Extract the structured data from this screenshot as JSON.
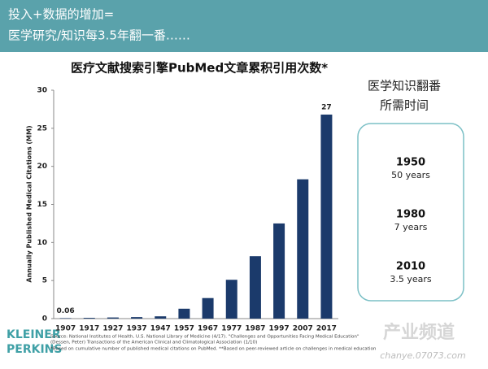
{
  "header": {
    "lines": [
      "投入+数据的增加=",
      "医学研究/知识每3.5年翻一番……"
    ]
  },
  "chart_data": {
    "type": "bar",
    "title": "医疗文献搜索引擎PubMed文章累积引用次数*",
    "y_label": "Annually Published Medical Citations (MM)",
    "categories": [
      "1907",
      "1917",
      "1927",
      "1937",
      "1947",
      "1957",
      "1967",
      "1977",
      "1987",
      "1997",
      "2007",
      "2017"
    ],
    "values": [
      0.06,
      0.1,
      0.15,
      0.2,
      0.3,
      1.3,
      2.7,
      5.1,
      8.2,
      12.5,
      18.3,
      26.8
    ],
    "value_labels": [
      "0.06",
      null,
      null,
      null,
      null,
      null,
      null,
      null,
      null,
      null,
      null,
      "27"
    ],
    "color": "#1b3a6b",
    "ylim": [
      0,
      30
    ],
    "yticks": [
      0,
      5,
      10,
      15,
      20,
      25,
      30
    ],
    "grid": false
  },
  "side_panel": {
    "title_lines": [
      "医学知识翻番",
      "所需时间"
    ],
    "items": [
      {
        "year": "1950",
        "span": "50 years"
      },
      {
        "year": "1980",
        "span": "7 years"
      },
      {
        "year": "2010",
        "span": "3.5 years"
      }
    ]
  },
  "footer": {
    "logo_lines": [
      "KLEINER",
      "PERKINS"
    ],
    "notes": [
      "Source: National Institutes of Health, U.S. National Library of Medicine (4/17). \"Challenges and Opportunities Facing Medical Education\"",
      "(Dessen, Peter) Transactions of the American Clinical and Climatological Association (1/10)",
      "*Based on cumulative number of published medical citations on PubMed. **Based on peer-reviewed article on challenges in medical education"
    ]
  },
  "watermark": [
    "产业频道",
    "chanye.07073.com"
  ]
}
